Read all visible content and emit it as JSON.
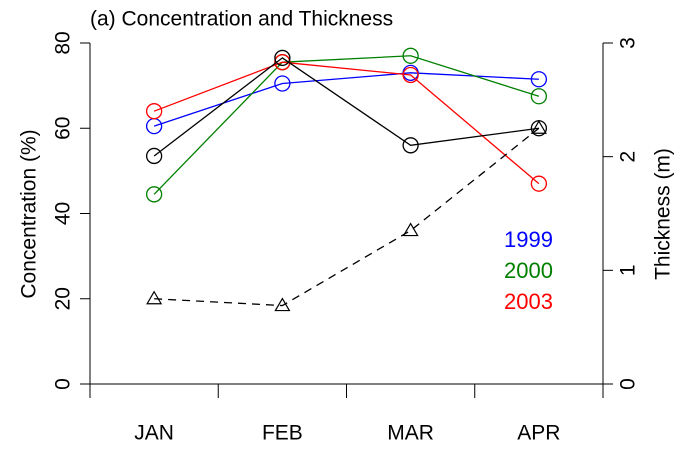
{
  "chart_data": {
    "type": "line",
    "title": "(a) Concentration and Thickness",
    "categories": [
      "JAN",
      "FEB",
      "MAR",
      "APR"
    ],
    "ylabel": "Concentration (%)",
    "y2label": "Thickness (m)",
    "ylim": [
      0,
      80
    ],
    "yticks": [
      0,
      20,
      40,
      60,
      80
    ],
    "y2lim": [
      0,
      3
    ],
    "y2ticks": [
      0,
      1,
      2,
      3
    ],
    "series": [
      {
        "name": "1999",
        "color": "#0000ff",
        "values": [
          60.5,
          70.5,
          73,
          71.5
        ]
      },
      {
        "name": "2000",
        "color": "#008000",
        "values": [
          44.5,
          75.5,
          77,
          67.5
        ]
      },
      {
        "name": "2003",
        "color": "#ff0000",
        "values": [
          64,
          75.5,
          72.5,
          47
        ]
      },
      {
        "color": "#000000",
        "values": [
          53.5,
          76.5,
          56,
          60
        ]
      },
      {
        "color": "#000000",
        "axis": "y2",
        "dashed": true,
        "marker": "triangle",
        "values": [
          0.75,
          0.69,
          1.35,
          2.25
        ]
      }
    ]
  }
}
